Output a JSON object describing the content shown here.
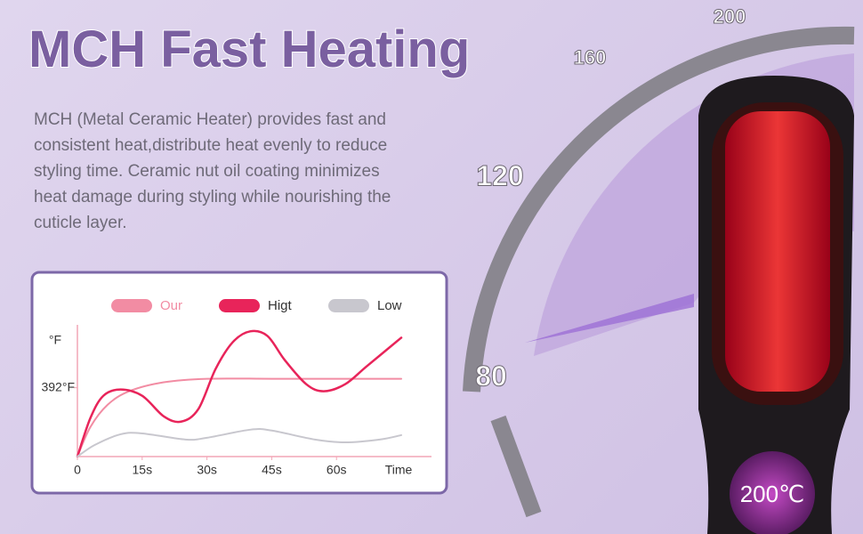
{
  "header": {
    "title": "MCH Fast Heating"
  },
  "description_lines": [
    "MCH (Metal Ceramic Heater) provides fast and",
    "consistent heat,distribute heat evenly to reduce",
    "styling time. Ceramic nut oil coating minimizes",
    "heat damage during styling while nourishing the",
    "cuticle layer."
  ],
  "gauge_labels": [
    "80",
    "120",
    "160",
    "200"
  ],
  "display": "200℃",
  "chart_data": {
    "type": "line",
    "y_label": "°F",
    "x_label": "Time",
    "xlim": [
      0,
      82
    ],
    "xticks": [
      0,
      {
        "value": 15,
        "label": "15s"
      },
      {
        "value": 30,
        "label": "30s"
      },
      {
        "value": 45,
        "label": "45s"
      },
      {
        "value": 60,
        "label": "60s"
      }
    ],
    "ylim": [
      0,
      750
    ],
    "yticks": [
      {
        "value": 392,
        "label": "392°F"
      }
    ],
    "series": [
      {
        "name": "Our",
        "color": "#f28ca3",
        "x": [
          0,
          3,
          7,
          12,
          20,
          30,
          45,
          60,
          75
        ],
        "values": [
          0,
          168,
          295,
          372,
          423,
          443,
          443,
          443,
          443
        ]
      },
      {
        "name": "Higt",
        "color": "#e8245a",
        "x": [
          0,
          3,
          6,
          10,
          15,
          20,
          24,
          28,
          32,
          36,
          40,
          44,
          48,
          53,
          57,
          62,
          67,
          75
        ],
        "values": [
          0,
          219,
          346,
          382,
          346,
          229,
          199,
          270,
          499,
          652,
          713,
          687,
          550,
          412,
          372,
          412,
          514,
          677
        ]
      },
      {
        "name": "Low",
        "color": "#c8c7ce",
        "x": [
          0,
          4,
          10,
          15,
          25,
          30,
          40,
          45,
          55,
          62,
          70,
          75
        ],
        "values": [
          0,
          66,
          127,
          132,
          97,
          107,
          153,
          148,
          97,
          81,
          97,
          122
        ]
      }
    ]
  }
}
